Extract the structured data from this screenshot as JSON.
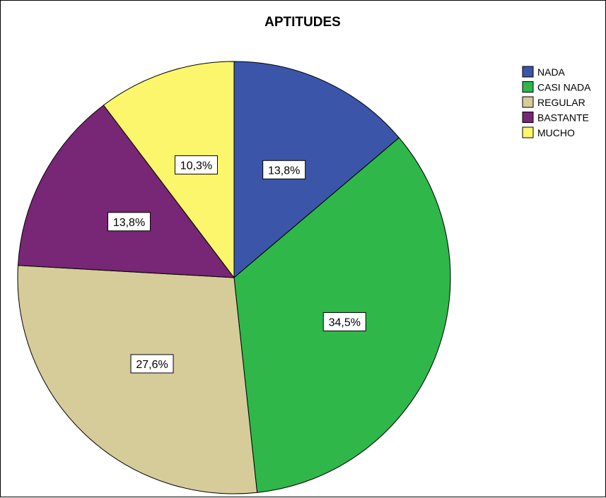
{
  "chart_data": {
    "type": "pie",
    "title": "APTITUDES",
    "slices": [
      {
        "label": "NADA",
        "value": 13.8,
        "display": "13,8%",
        "color": "#3b55a8"
      },
      {
        "label": "CASI NADA",
        "value": 34.5,
        "display": "34,5%",
        "color": "#2fb74a"
      },
      {
        "label": "REGULAR",
        "value": 27.6,
        "display": "27,6%",
        "color": "#d5cc9a"
      },
      {
        "label": "BASTANTE",
        "value": 13.8,
        "display": "13,8%",
        "color": "#782676"
      },
      {
        "label": "MUCHO",
        "value": 10.3,
        "display": "10,3%",
        "color": "#fbf66b"
      }
    ],
    "start_angle": "12 o'clock",
    "direction": "clockwise",
    "legend_position": "top-right"
  }
}
